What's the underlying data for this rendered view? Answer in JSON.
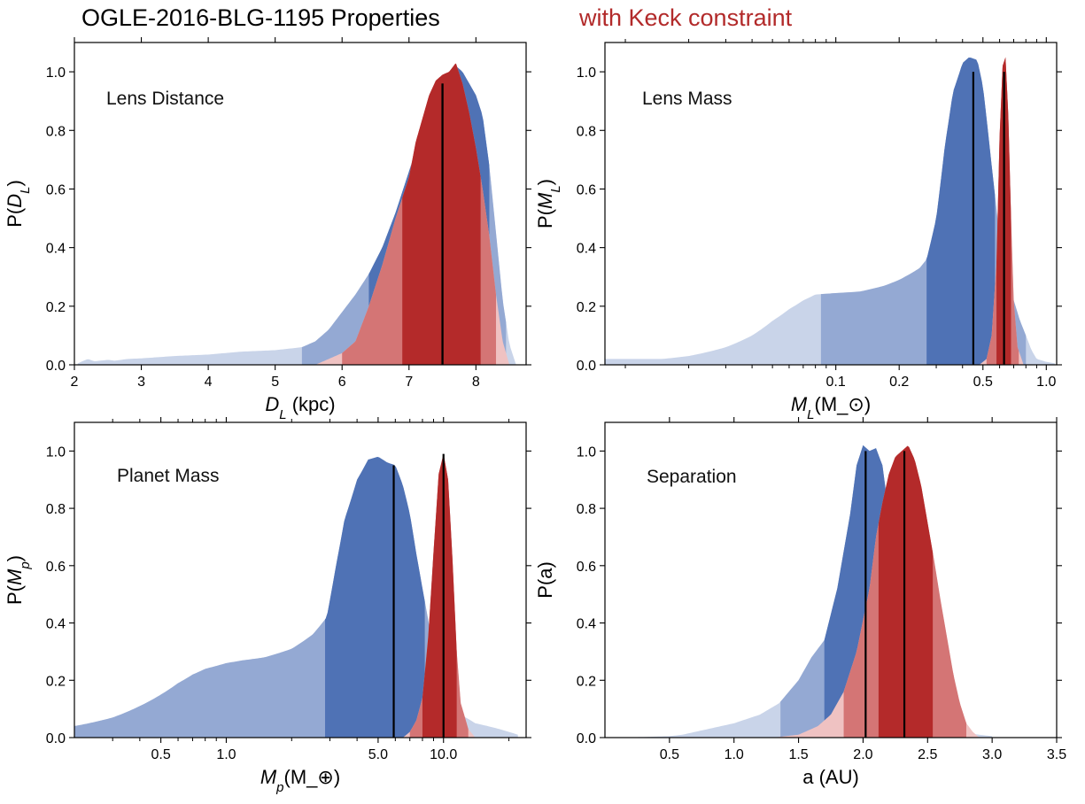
{
  "figure": {
    "title": "OGLE-2016-BLG-1195 Properties",
    "title_highlight": "with Keck constraint"
  },
  "colors": {
    "blue_outer": "#c9d4e9",
    "blue_mid": "#94a9d3",
    "blue_core": "#4f72b5",
    "red_outer": "#efc2c2",
    "red_mid": "#d47575",
    "red_core": "#b42a2a",
    "median": "#000000",
    "title_red": "#b22a2a"
  },
  "chart_data": [
    {
      "id": "lens-distance",
      "type": "area",
      "panel_label": "Lens Distance",
      "ylabel": "P(D_L)",
      "xlabel": "D_L (kpc)",
      "xscale": "linear",
      "xlim": [
        2.0,
        8.75
      ],
      "ylim": [
        0.0,
        1.1
      ],
      "xticks": [
        2,
        3,
        4,
        5,
        6,
        7,
        8
      ],
      "xtick_labels": [
        "2",
        "3",
        "4",
        "5",
        "6",
        "7",
        "8"
      ],
      "yticks": [
        0.0,
        0.2,
        0.4,
        0.6,
        0.8,
        1.0
      ],
      "ytick_labels": [
        "0.0",
        "0.2",
        "0.4",
        "0.6",
        "0.8",
        "1.0"
      ],
      "series": [
        {
          "name": "without Keck constraint",
          "color": "blue",
          "x": [
            2.05,
            2.2,
            2.3,
            2.5,
            2.6,
            2.8,
            3.0,
            3.5,
            4.0,
            4.5,
            5.0,
            5.4,
            5.6,
            5.8,
            6.0,
            6.2,
            6.4,
            6.6,
            6.8,
            7.0,
            7.2,
            7.3,
            7.4,
            7.5,
            7.6,
            7.7,
            7.8,
            7.9,
            8.0,
            8.1,
            8.2,
            8.3,
            8.4,
            8.5,
            8.6
          ],
          "y": [
            0.005,
            0.02,
            0.012,
            0.017,
            0.014,
            0.02,
            0.022,
            0.03,
            0.035,
            0.045,
            0.05,
            0.06,
            0.08,
            0.12,
            0.18,
            0.24,
            0.31,
            0.4,
            0.52,
            0.66,
            0.8,
            0.88,
            0.95,
            0.98,
            1.0,
            1.02,
            1.0,
            0.96,
            0.92,
            0.85,
            0.68,
            0.45,
            0.22,
            0.07,
            0.0
          ],
          "bands": [
            [
              5.4,
              8.45
            ],
            [
              6.4,
              8.2
            ]
          ],
          "median": 7.5,
          "median_height": 0.96
        },
        {
          "name": "with Keck constraint",
          "color": "red",
          "x": [
            5.6,
            5.8,
            6.0,
            6.2,
            6.4,
            6.6,
            6.8,
            7.0,
            7.1,
            7.2,
            7.3,
            7.4,
            7.5,
            7.6,
            7.7,
            7.8,
            7.9,
            8.0,
            8.1,
            8.2,
            8.3,
            8.4,
            8.5
          ],
          "y": [
            0.0,
            0.02,
            0.04,
            0.08,
            0.2,
            0.34,
            0.5,
            0.64,
            0.76,
            0.84,
            0.92,
            0.97,
            0.99,
            1.0,
            1.03,
            0.96,
            0.86,
            0.74,
            0.6,
            0.44,
            0.24,
            0.08,
            0.0
          ],
          "bands": [
            [
              6.0,
              8.3
            ],
            [
              6.9,
              8.07
            ]
          ],
          "median": 7.5,
          "median_height": 0.96
        }
      ]
    },
    {
      "id": "lens-mass",
      "type": "area",
      "panel_label": "Lens Mass",
      "ylabel": "P(M_L)",
      "xlabel": "M_L(M_⊙)",
      "xscale": "log",
      "xlim": [
        0.008,
        1.12
      ],
      "ylim": [
        0.0,
        1.1
      ],
      "xticks": [
        0.1,
        0.2,
        0.5,
        1.0
      ],
      "xtick_labels": [
        "0.1",
        "0.2",
        "0.5",
        "1.0"
      ],
      "minor_xticks": [
        0.01,
        0.02,
        0.03,
        0.04,
        0.05,
        0.06,
        0.07,
        0.08,
        0.09,
        0.3,
        0.4,
        0.6,
        0.7,
        0.8,
        0.9
      ],
      "yticks": [
        0.0,
        0.2,
        0.4,
        0.6,
        0.8,
        1.0
      ],
      "ytick_labels": [
        "0.0",
        "0.2",
        "0.4",
        "0.6",
        "0.8",
        "1.0"
      ],
      "series": [
        {
          "name": "without Keck constraint",
          "color": "blue",
          "x": [
            0.008,
            0.015,
            0.02,
            0.03,
            0.04,
            0.05,
            0.06,
            0.07,
            0.08,
            0.1,
            0.13,
            0.17,
            0.2,
            0.25,
            0.27,
            0.3,
            0.33,
            0.36,
            0.4,
            0.43,
            0.47,
            0.5,
            0.55,
            0.6,
            0.65,
            0.7,
            0.75,
            0.8,
            0.85,
            0.9,
            1.0,
            1.1
          ],
          "y": [
            0.02,
            0.02,
            0.03,
            0.06,
            0.1,
            0.15,
            0.19,
            0.22,
            0.24,
            0.245,
            0.25,
            0.27,
            0.29,
            0.33,
            0.36,
            0.5,
            0.75,
            0.93,
            1.03,
            1.05,
            1.04,
            0.95,
            0.68,
            0.43,
            0.29,
            0.22,
            0.15,
            0.1,
            0.05,
            0.02,
            0.01,
            0.005
          ],
          "bands": [
            [
              0.085,
              0.8
            ],
            [
              0.27,
              0.57
            ]
          ],
          "median": 0.45,
          "median_height": 1.0
        },
        {
          "name": "with Keck constraint",
          "color": "red",
          "x": [
            0.48,
            0.52,
            0.55,
            0.58,
            0.6,
            0.62,
            0.64,
            0.66,
            0.68,
            0.7,
            0.73,
            0.78
          ],
          "y": [
            0.0,
            0.02,
            0.1,
            0.35,
            0.78,
            1.02,
            1.05,
            0.85,
            0.5,
            0.22,
            0.06,
            0.0
          ],
          "bands": [
            [
              0.52,
              0.74
            ],
            [
              0.58,
              0.68
            ]
          ],
          "median": 0.63,
          "median_height": 1.0
        }
      ]
    },
    {
      "id": "planet-mass",
      "type": "area",
      "panel_label": "Planet Mass",
      "ylabel": "P(M_p)",
      "xlabel": "M_p(M_⊕)",
      "xscale": "log",
      "xlim": [
        0.2,
        24.0
      ],
      "ylim": [
        0.0,
        1.1
      ],
      "xticks": [
        0.5,
        1.0,
        5.0,
        10.0
      ],
      "xtick_labels": [
        "0.5",
        "1.0",
        "5.0",
        "10.0"
      ],
      "minor_xticks": [
        0.3,
        0.4,
        0.6,
        0.7,
        0.8,
        0.9,
        2,
        3,
        4,
        6,
        7,
        8,
        9,
        20
      ],
      "yticks": [
        0.0,
        0.2,
        0.4,
        0.6,
        0.8,
        1.0
      ],
      "ytick_labels": [
        "0.0",
        "0.2",
        "0.4",
        "0.6",
        "0.8",
        "1.0"
      ],
      "series": [
        {
          "name": "without Keck constraint",
          "color": "blue",
          "x": [
            0.2,
            0.3,
            0.4,
            0.5,
            0.6,
            0.7,
            0.8,
            1.0,
            1.2,
            1.5,
            2.0,
            2.5,
            2.9,
            3.2,
            3.5,
            4.0,
            4.5,
            5.0,
            5.5,
            6.0,
            6.5,
            7.0,
            7.5,
            8.0,
            9.0,
            10.0,
            12.0,
            14.0,
            16.0,
            18.0,
            20.0,
            22.0
          ],
          "y": [
            0.04,
            0.07,
            0.11,
            0.15,
            0.19,
            0.22,
            0.24,
            0.26,
            0.27,
            0.28,
            0.31,
            0.36,
            0.42,
            0.6,
            0.76,
            0.9,
            0.97,
            0.98,
            0.96,
            0.95,
            0.88,
            0.78,
            0.64,
            0.52,
            0.3,
            0.15,
            0.08,
            0.05,
            0.04,
            0.03,
            0.02,
            0.01
          ],
          "bands": [
            [
              0.2,
              11.0
            ],
            [
              2.85,
              8.2
            ]
          ],
          "median": 5.9,
          "median_height": 0.95
        },
        {
          "name": "with Keck constraint",
          "color": "red",
          "x": [
            6.5,
            7.0,
            7.5,
            8.0,
            8.5,
            9.0,
            9.5,
            10.0,
            10.5,
            11.0,
            11.5,
            12.0,
            13.0,
            14.0
          ],
          "y": [
            0.0,
            0.02,
            0.06,
            0.14,
            0.35,
            0.65,
            0.92,
            0.99,
            0.9,
            0.62,
            0.3,
            0.12,
            0.03,
            0.0
          ],
          "bands": [
            [
              7.0,
              13.0
            ],
            [
              8.0,
              11.5
            ]
          ],
          "median": 10.0,
          "median_height": 0.99
        }
      ]
    },
    {
      "id": "separation",
      "type": "area",
      "panel_label": "Separation",
      "ylabel": "P(a)",
      "xlabel": "a (AU)",
      "xscale": "linear",
      "xlim": [
        0.0,
        3.5
      ],
      "ylim": [
        0.0,
        1.1
      ],
      "xticks": [
        0.5,
        1.0,
        1.5,
        2.0,
        2.5,
        3.0,
        3.5
      ],
      "xtick_labels": [
        "0.5",
        "1.0",
        "1.5",
        "2.0",
        "2.5",
        "3.0",
        "3.5"
      ],
      "yticks": [
        0.0,
        0.2,
        0.4,
        0.6,
        0.8,
        1.0
      ],
      "ytick_labels": [
        "0.0",
        "0.2",
        "0.4",
        "0.6",
        "0.8",
        "1.0"
      ],
      "series": [
        {
          "name": "without Keck constraint",
          "color": "blue",
          "x": [
            0.0,
            0.3,
            0.5,
            0.6,
            0.8,
            1.0,
            1.2,
            1.35,
            1.5,
            1.6,
            1.7,
            1.8,
            1.9,
            1.95,
            2.0,
            2.05,
            2.1,
            2.15,
            2.2,
            2.25,
            2.3,
            2.35,
            2.4,
            2.5,
            2.6,
            2.7,
            2.8,
            2.9,
            3.0
          ],
          "y": [
            0.0,
            0.002,
            0.005,
            0.01,
            0.03,
            0.05,
            0.08,
            0.12,
            0.2,
            0.28,
            0.34,
            0.52,
            0.78,
            0.95,
            1.02,
            1.0,
            1.01,
            0.95,
            0.78,
            0.55,
            0.35,
            0.22,
            0.12,
            0.05,
            0.03,
            0.02,
            0.015,
            0.01,
            0.005
          ],
          "bands": [
            [
              1.36,
              2.6
            ],
            [
              1.7,
              2.3
            ]
          ],
          "median": 2.02,
          "median_height": 1.0
        },
        {
          "name": "with Keck constraint",
          "color": "red",
          "x": [
            0.0,
            1.3,
            1.5,
            1.65,
            1.75,
            1.85,
            1.95,
            2.05,
            2.1,
            2.15,
            2.2,
            2.25,
            2.3,
            2.35,
            2.4,
            2.45,
            2.5,
            2.55,
            2.6,
            2.65,
            2.7,
            2.75,
            2.8,
            2.85,
            2.9
          ],
          "y": [
            0.0,
            0.0,
            0.01,
            0.04,
            0.08,
            0.16,
            0.3,
            0.52,
            0.7,
            0.82,
            0.92,
            0.98,
            1.0,
            1.02,
            0.97,
            0.88,
            0.75,
            0.62,
            0.48,
            0.35,
            0.22,
            0.12,
            0.05,
            0.02,
            0.0
          ],
          "bands": [
            [
              1.85,
              2.8
            ],
            [
              2.12,
              2.54
            ]
          ],
          "median": 2.32,
          "median_height": 1.0
        }
      ]
    }
  ]
}
